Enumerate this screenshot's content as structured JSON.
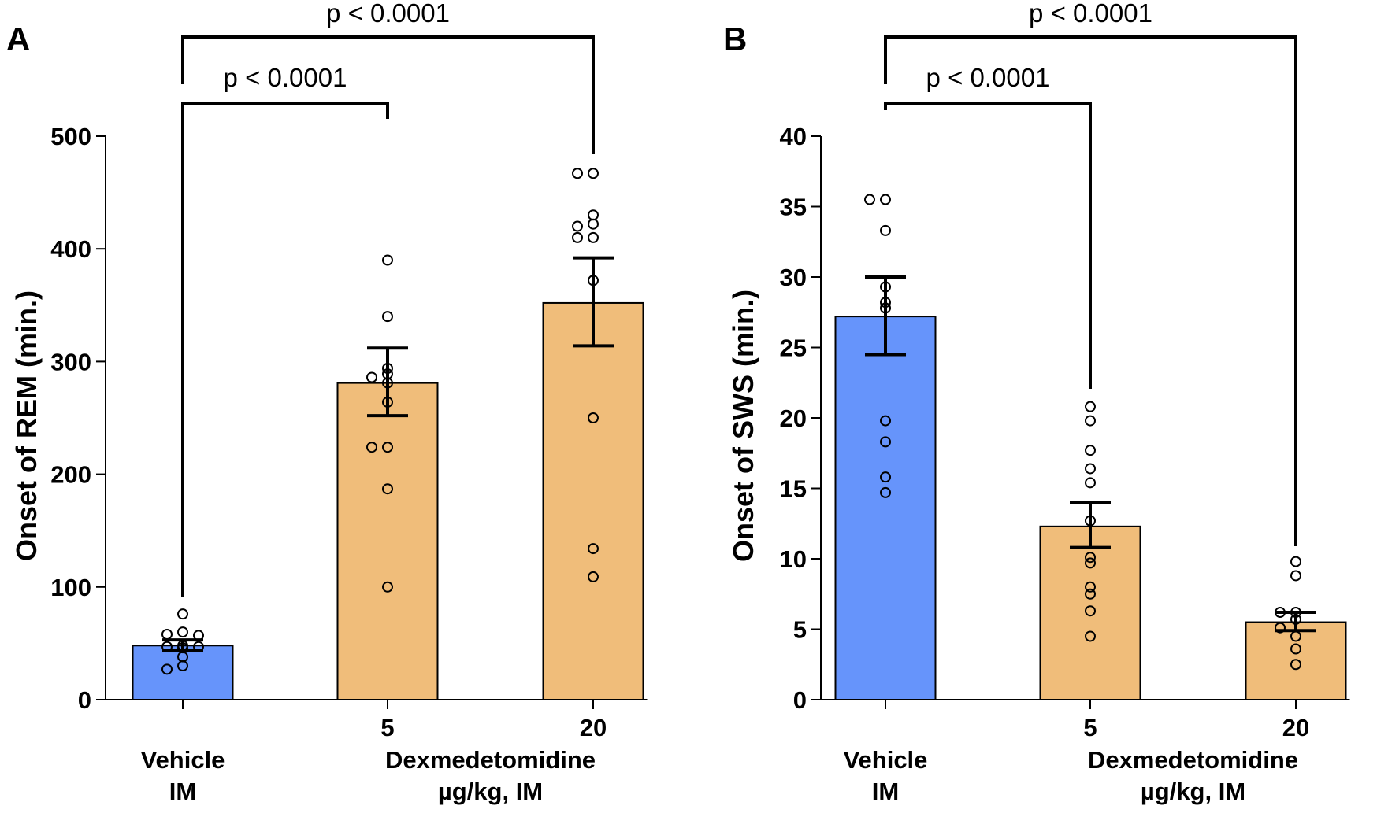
{
  "chart_data": [
    {
      "type": "bar",
      "panel_label": "A",
      "ylabel": "Onset of REM (min.)",
      "ylim": [
        0,
        500
      ],
      "yticks": [
        "0",
        "100",
        "200",
        "300",
        "400",
        "500"
      ],
      "categories": [
        "Vehicle",
        "5",
        "20"
      ],
      "group_labels": {
        "left_line1": "Vehicle",
        "left_line2": "IM",
        "right_line1": "Dexmedetomidine",
        "right_line2": "µg/kg, IM"
      },
      "tick_labels": [
        "",
        "5",
        "20"
      ],
      "means": [
        48,
        281,
        352
      ],
      "sem_upper": [
        53,
        312,
        392
      ],
      "sem_lower": [
        44,
        252,
        314
      ],
      "points": [
        [
          76,
          60,
          58,
          57,
          48,
          47,
          47,
          46,
          38,
          30,
          27
        ],
        [
          390,
          340,
          294,
          289,
          286,
          281,
          264,
          224,
          224,
          187,
          100
        ],
        [
          467,
          467,
          430,
          422,
          420,
          410,
          410,
          372,
          250,
          134,
          109
        ]
      ],
      "colors": [
        "#6694fb",
        "#f0bd7a",
        "#f0bd7a"
      ],
      "comparisons": [
        {
          "from": "Vehicle",
          "to": "5",
          "label": "p < 0.0001"
        },
        {
          "from": "Vehicle",
          "to": "20",
          "label": "p < 0.0001"
        }
      ]
    },
    {
      "type": "bar",
      "panel_label": "B",
      "ylabel": "Onset of SWS (min.)",
      "ylim": [
        0,
        40
      ],
      "yticks": [
        "0",
        "5",
        "10",
        "15",
        "20",
        "25",
        "30",
        "35",
        "40"
      ],
      "categories": [
        "Vehicle",
        "5",
        "20"
      ],
      "group_labels": {
        "left_line1": "Vehicle",
        "left_line2": "IM",
        "right_line1": "Dexmedetomidine",
        "right_line2": "µg/kg, IM"
      },
      "tick_labels": [
        "",
        "5",
        "20"
      ],
      "means": [
        27.2,
        12.3,
        5.5
      ],
      "sem_upper": [
        30.0,
        14.0,
        6.2
      ],
      "sem_lower": [
        24.5,
        10.8,
        4.9
      ],
      "points": [
        [
          35.5,
          35.5,
          33.3,
          29.3,
          28.2,
          27.8,
          19.8,
          18.3,
          15.8,
          14.7
        ],
        [
          20.8,
          19.8,
          17.7,
          16.4,
          15.4,
          12.7,
          10.1,
          9.7,
          8.0,
          7.5,
          6.3,
          4.5
        ],
        [
          9.8,
          8.8,
          6.2,
          6.2,
          5.7,
          5.1,
          4.5,
          3.6,
          2.5
        ]
      ],
      "colors": [
        "#6694fb",
        "#f0bd7a",
        "#f0bd7a"
      ],
      "comparisons": [
        {
          "from": "Vehicle",
          "to": "5",
          "label": "p < 0.0001"
        },
        {
          "from": "Vehicle",
          "to": "20",
          "label": "p < 0.0001"
        }
      ]
    }
  ]
}
